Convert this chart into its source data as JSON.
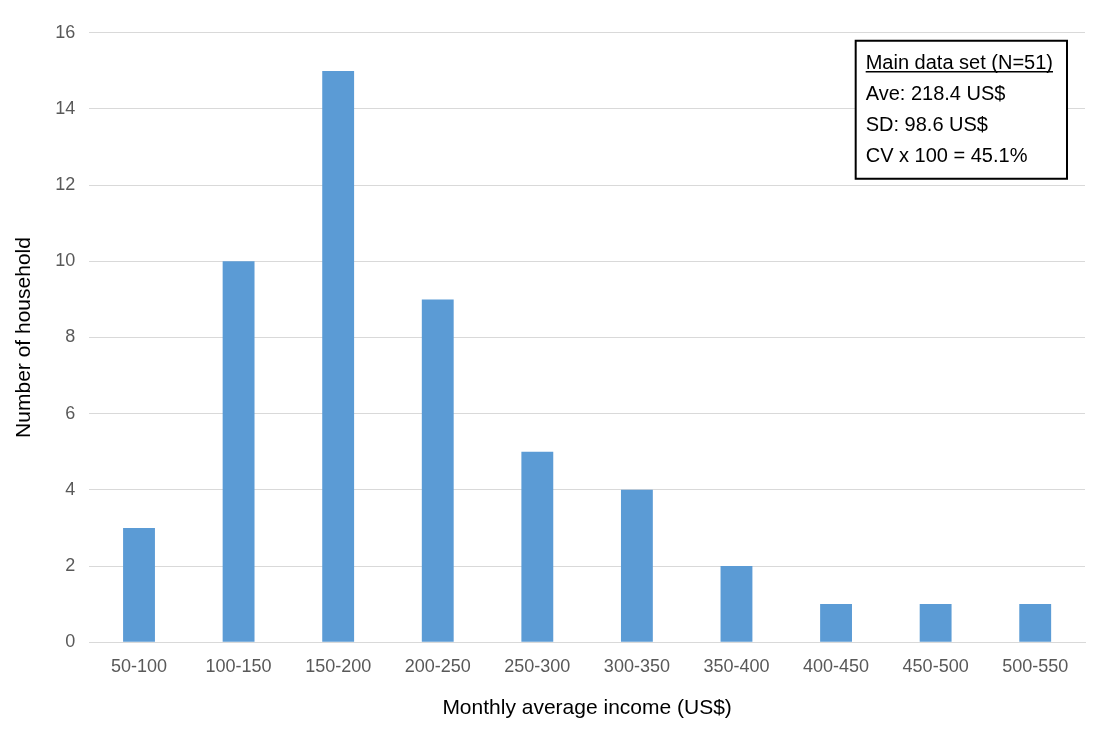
{
  "chart_data": {
    "type": "bar",
    "xlabel": "Monthly average income (US$)",
    "ylabel": "Number of household",
    "categories": [
      "50-100",
      "100-150",
      "150-200",
      "200-250",
      "250-300",
      "300-350",
      "350-400",
      "400-450",
      "450-500",
      "500-550"
    ],
    "values": [
      3,
      10,
      15,
      9,
      5,
      4,
      2,
      1,
      1,
      1
    ],
    "color": "#5b9bd5",
    "ylim": [
      0,
      16
    ],
    "yticks": [
      0,
      2,
      4,
      6,
      8,
      10,
      12,
      14,
      16
    ],
    "grid": "y",
    "legend": false,
    "annotations": [
      "Main data set (N=51)",
      "Ave: 218.4 US$",
      "SD: 98.6 US$",
      "CV x 100 = 45.1%"
    ]
  }
}
